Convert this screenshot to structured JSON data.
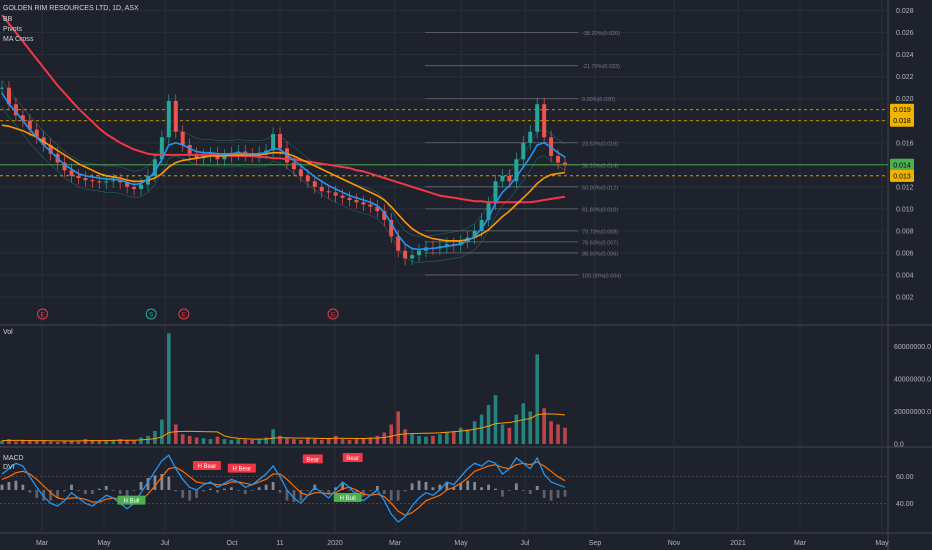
{
  "header": {
    "title": "GOLDEN RIM RESOURCES LTD, 1D, ASX",
    "indicators": [
      "BB",
      "Pivots",
      "MA Cross"
    ]
  },
  "colors": {
    "background": "#1e222d",
    "grid": "#2a2e39",
    "axis_text": "#b2b5be",
    "up": "#26a69a",
    "down": "#ef5350",
    "ma_fast": "#2196f3",
    "ma_mid": "#ff9800",
    "ma_slow": "#f23645",
    "fib": "#787b86",
    "current_price": "#4caf50",
    "level_dash": "#f0b400",
    "macd_line": "#2196f3",
    "signal_line": "#ff6d00",
    "bear_label": "#f23645",
    "bull_label": "#4caf50"
  },
  "chart_data": [
    {
      "type": "line",
      "name": "price",
      "x_labels": [
        "Mar",
        "May",
        "Jul",
        "Oct",
        "11",
        "2020",
        "Mar",
        "May",
        "Jul",
        "Sep",
        "Nov",
        "2021",
        "Mar",
        "May"
      ],
      "y_ticks": [
        "0.028",
        "0.026",
        "0.024",
        "0.022",
        "0.020",
        "0.018",
        "0.016",
        "0.014",
        "0.012",
        "0.010",
        "0.008",
        "0.006",
        "0.004",
        "0.002"
      ],
      "ylim": [
        0.0,
        0.0286
      ],
      "price_tags": [
        {
          "value": 0.019,
          "label": "0.019",
          "style": "yellow"
        },
        {
          "value": 0.018,
          "label": "0.018",
          "style": "yellow"
        },
        {
          "value": 0.014,
          "label": "0.014",
          "style": "green"
        },
        {
          "value": 0.013,
          "label": "0.013",
          "style": "yellow"
        }
      ],
      "dashed_levels": [
        0.019,
        0.018,
        0.013
      ],
      "current_price": 0.014,
      "fib_levels": [
        {
          "value": 0.026,
          "label": "-38.20%(0.026)"
        },
        {
          "value": 0.023,
          "label": "-21.70%(0.023)"
        },
        {
          "value": 0.02,
          "label": "0.00%(0.020)"
        },
        {
          "value": 0.016,
          "label": "23.60%(0.016)"
        },
        {
          "value": 0.014,
          "label": "38.20%(0.014)"
        },
        {
          "value": 0.012,
          "label": "50.00%(0.012)"
        },
        {
          "value": 0.01,
          "label": "61.80%(0.010)"
        },
        {
          "value": 0.008,
          "label": "70.70%(0.008)"
        },
        {
          "value": 0.007,
          "label": "78.60%(0.007)"
        },
        {
          "value": 0.006,
          "label": "88.60%(0.006)"
        },
        {
          "value": 0.004,
          "label": "100.00%(0.004)"
        }
      ],
      "events": [
        {
          "label": "E",
          "t": 0.072,
          "color": "#f23645"
        },
        {
          "label": "S",
          "t": 0.265,
          "color": "#26a69a"
        },
        {
          "label": "E",
          "t": 0.323,
          "color": "#f23645"
        },
        {
          "label": "E",
          "t": 0.588,
          "color": "#f23645"
        }
      ],
      "close": [
        0.021,
        0.0195,
        0.0185,
        0.018,
        0.0172,
        0.0165,
        0.0158,
        0.015,
        0.0142,
        0.0135,
        0.013,
        0.0128,
        0.0126,
        0.0125,
        0.0124,
        0.0125,
        0.0126,
        0.0124,
        0.012,
        0.0118,
        0.0122,
        0.013,
        0.0145,
        0.0165,
        0.0198,
        0.017,
        0.0158,
        0.015,
        0.0146,
        0.0148,
        0.015,
        0.0145,
        0.0148,
        0.015,
        0.0152,
        0.0149,
        0.0148,
        0.0151,
        0.0153,
        0.0168,
        0.0155,
        0.0142,
        0.0136,
        0.013,
        0.0125,
        0.012,
        0.0116,
        0.0115,
        0.0112,
        0.011,
        0.0108,
        0.0106,
        0.0104,
        0.0102,
        0.0098,
        0.009,
        0.0075,
        0.0062,
        0.0055,
        0.0058,
        0.0062,
        0.0065,
        0.0064,
        0.0066,
        0.0068,
        0.0067,
        0.007,
        0.0074,
        0.008,
        0.009,
        0.0105,
        0.0125,
        0.013,
        0.0125,
        0.0145,
        0.016,
        0.017,
        0.0195,
        0.0165,
        0.0148,
        0.0142,
        0.014
      ],
      "ma_fast": [
        0.0205,
        0.0195,
        0.0188,
        0.018,
        0.0172,
        0.0165,
        0.0158,
        0.0152,
        0.0146,
        0.014,
        0.0136,
        0.0132,
        0.013,
        0.0129,
        0.0128,
        0.0127,
        0.0127,
        0.0126,
        0.0124,
        0.0122,
        0.0123,
        0.0127,
        0.0134,
        0.0145,
        0.0158,
        0.016,
        0.0158,
        0.0155,
        0.0152,
        0.0151,
        0.0151,
        0.015,
        0.015,
        0.015,
        0.0151,
        0.015,
        0.015,
        0.015,
        0.0151,
        0.0155,
        0.0154,
        0.0149,
        0.0144,
        0.0139,
        0.0134,
        0.0129,
        0.0125,
        0.0121,
        0.0118,
        0.0115,
        0.0112,
        0.011,
        0.0108,
        0.0106,
        0.0103,
        0.0097,
        0.0087,
        0.0076,
        0.0068,
        0.0064,
        0.0063,
        0.0064,
        0.0064,
        0.0065,
        0.0066,
        0.0067,
        0.0068,
        0.0071,
        0.0075,
        0.0082,
        0.0092,
        0.0105,
        0.0115,
        0.0121,
        0.0129,
        0.0138,
        0.0147,
        0.0158,
        0.016,
        0.0156,
        0.0151,
        0.0147
      ],
      "ma_mid": [
        0.0176,
        0.0175,
        0.0173,
        0.0171,
        0.0168,
        0.0165,
        0.0161,
        0.0157,
        0.0153,
        0.0149,
        0.0145,
        0.0141,
        0.0138,
        0.0135,
        0.0132,
        0.013,
        0.0129,
        0.0128,
        0.0126,
        0.0125,
        0.0125,
        0.0126,
        0.0128,
        0.0132,
        0.0138,
        0.0142,
        0.0144,
        0.0145,
        0.0146,
        0.0147,
        0.0148,
        0.0148,
        0.0148,
        0.0149,
        0.0149,
        0.0149,
        0.0149,
        0.0149,
        0.015,
        0.0151,
        0.0151,
        0.015,
        0.0148,
        0.0145,
        0.0142,
        0.0139,
        0.0136,
        0.0133,
        0.013,
        0.0127,
        0.0124,
        0.0121,
        0.0118,
        0.0115,
        0.0112,
        0.0108,
        0.0102,
        0.0095,
        0.0088,
        0.0082,
        0.0078,
        0.0075,
        0.0073,
        0.0072,
        0.0071,
        0.0071,
        0.0071,
        0.0072,
        0.0074,
        0.0077,
        0.0081,
        0.0087,
        0.0093,
        0.0098,
        0.0104,
        0.011,
        0.0116,
        0.0123,
        0.0128,
        0.0131,
        0.0132,
        0.0133
      ],
      "ma_slow": [
        0.0276,
        0.0268,
        0.026,
        0.0252,
        0.0244,
        0.0236,
        0.0228,
        0.022,
        0.0212,
        0.0205,
        0.0198,
        0.0191,
        0.0185,
        0.0179,
        0.0173,
        0.0168,
        0.0164,
        0.016,
        0.0157,
        0.0154,
        0.0152,
        0.015,
        0.0149,
        0.0149,
        0.0149,
        0.0149,
        0.0149,
        0.0149,
        0.0149,
        0.0149,
        0.0149,
        0.0149,
        0.0149,
        0.0148,
        0.0148,
        0.0148,
        0.0148,
        0.0147,
        0.0147,
        0.0146,
        0.0146,
        0.0145,
        0.0145,
        0.0144,
        0.0143,
        0.0142,
        0.0141,
        0.014,
        0.0139,
        0.0138,
        0.0137,
        0.0135,
        0.0134,
        0.0132,
        0.013,
        0.0128,
        0.0126,
        0.0124,
        0.0122,
        0.012,
        0.0118,
        0.0116,
        0.0114,
        0.0112,
        0.0111,
        0.011,
        0.0109,
        0.0108,
        0.0107,
        0.0107,
        0.0106,
        0.0106,
        0.0106,
        0.0106,
        0.0106,
        0.0106,
        0.0106,
        0.0107,
        0.0108,
        0.0109,
        0.011,
        0.0111
      ]
    },
    {
      "type": "bar",
      "name": "Vol",
      "title": "Vol",
      "y_ticks": [
        "60000000.0",
        "40000000.0",
        "20000000.0",
        "0.0"
      ],
      "ylim": [
        0,
        70000000
      ],
      "values": [
        2000000,
        3000000,
        1500000,
        2500000,
        2000000,
        1800000,
        2200000,
        1500000,
        1200000,
        1800000,
        2000000,
        1500000,
        3000000,
        2500000,
        2000000,
        1800000,
        2500000,
        3000000,
        2200000,
        2000000,
        4000000,
        5000000,
        8000000,
        15000000,
        68000000,
        12000000,
        6000000,
        5000000,
        4000000,
        3500000,
        3000000,
        4500000,
        3000000,
        2500000,
        3000000,
        2800000,
        2500000,
        3200000,
        4000000,
        9000000,
        5000000,
        3500000,
        3000000,
        2500000,
        4000000,
        3000000,
        2500000,
        3500000,
        5000000,
        3000000,
        2500000,
        3000000,
        3500000,
        4000000,
        5000000,
        7000000,
        12000000,
        20000000,
        9000000,
        6000000,
        5000000,
        4500000,
        5000000,
        6000000,
        7000000,
        8000000,
        10000000,
        9000000,
        14000000,
        18000000,
        24000000,
        30000000,
        12000000,
        10000000,
        18000000,
        25000000,
        20000000,
        55000000,
        22000000,
        14000000,
        12000000,
        10000000
      ],
      "ma": [
        2100000,
        2200000,
        2200000,
        2200000,
        2100000,
        2100000,
        2100000,
        2000000,
        1900000,
        1900000,
        1900000,
        1900000,
        2000000,
        2100000,
        2100000,
        2100000,
        2200000,
        2300000,
        2300000,
        2300000,
        2500000,
        2800000,
        3300000,
        4300000,
        7000000,
        7600000,
        7700000,
        7800000,
        7700000,
        7600000,
        7500000,
        7400000,
        5000000,
        4000000,
        3500000,
        3200000,
        3000000,
        3000000,
        3100000,
        3600000,
        3800000,
        3800000,
        3700000,
        3600000,
        3600000,
        3500000,
        3400000,
        3400000,
        3500000,
        3500000,
        3400000,
        3400000,
        3400000,
        3500000,
        3700000,
        4000000,
        4700000,
        5800000,
        6200000,
        6400000,
        6500000,
        6600000,
        6700000,
        6900000,
        7200000,
        7500000,
        8000000,
        8300000,
        9000000,
        9900000,
        11000000,
        12500000,
        12900000,
        13200000,
        14000000,
        15000000,
        15600000,
        18000000,
        18500000,
        18400000,
        18300000,
        17800000
      ]
    },
    {
      "type": "line",
      "name": "MACD / DVI",
      "labels": [
        "MACD",
        "DVI"
      ],
      "y_ticks": [
        "60.00",
        "40.00"
      ],
      "ylim": [
        20,
        80
      ],
      "dvi": [
        62,
        66,
        70,
        68,
        60,
        52,
        45,
        40,
        38,
        42,
        48,
        44,
        40,
        38,
        42,
        46,
        44,
        40,
        36,
        40,
        48,
        56,
        64,
        72,
        76,
        66,
        58,
        52,
        50,
        54,
        56,
        52,
        55,
        58,
        56,
        52,
        54,
        58,
        62,
        68,
        60,
        50,
        44,
        40,
        46,
        52,
        48,
        44,
        50,
        56,
        52,
        46,
        42,
        46,
        50,
        42,
        32,
        26,
        30,
        38,
        44,
        48,
        46,
        50,
        56,
        54,
        60,
        66,
        70,
        68,
        72,
        70,
        62,
        66,
        74,
        70,
        66,
        74,
        62,
        56,
        54,
        52
      ],
      "signal": [
        58,
        60,
        63,
        64,
        62,
        58,
        53,
        48,
        44,
        43,
        44,
        44,
        43,
        41,
        41,
        43,
        44,
        43,
        41,
        40,
        42,
        47,
        53,
        60,
        66,
        67,
        64,
        60,
        56,
        55,
        55,
        54,
        54,
        56,
        56,
        55,
        54,
        56,
        58,
        62,
        62,
        58,
        53,
        48,
        46,
        48,
        48,
        47,
        48,
        51,
        52,
        50,
        47,
        46,
        47,
        45,
        40,
        34,
        31,
        33,
        37,
        42,
        44,
        46,
        50,
        52,
        55,
        59,
        64,
        66,
        68,
        69,
        67,
        66,
        69,
        70,
        69,
        71,
        68,
        64,
        60,
        57
      ],
      "hist": [
        4,
        6,
        7,
        4,
        -2,
        -6,
        -8,
        -8,
        -6,
        -1,
        4,
        0,
        -3,
        -3,
        1,
        3,
        0,
        -3,
        -5,
        0,
        6,
        9,
        11,
        12,
        10,
        -1,
        -6,
        -8,
        -6,
        -1,
        1,
        -2,
        1,
        2,
        0,
        -3,
        0,
        2,
        4,
        6,
        -2,
        -8,
        -9,
        -8,
        0,
        4,
        0,
        -3,
        2,
        5,
        0,
        -4,
        -5,
        0,
        3,
        -3,
        -8,
        -8,
        -1,
        5,
        7,
        6,
        2,
        4,
        6,
        2,
        5,
        7,
        6,
        2,
        4,
        1,
        -5,
        0,
        5,
        0,
        -3,
        3,
        -6,
        -8,
        -6,
        -5
      ],
      "annotations": [
        {
          "label": "H Bear",
          "t": 0.364,
          "y": 68,
          "type": "bear"
        },
        {
          "label": "H Bear",
          "t": 0.426,
          "y": 66,
          "type": "bear"
        },
        {
          "label": "H Bull",
          "t": 0.23,
          "y": 42,
          "type": "bull"
        },
        {
          "label": "Bear",
          "t": 0.552,
          "y": 73,
          "type": "bear"
        },
        {
          "label": "Bear",
          "t": 0.623,
          "y": 74,
          "type": "bear"
        },
        {
          "label": "H Bull",
          "t": 0.614,
          "y": 44,
          "type": "bull"
        }
      ]
    }
  ]
}
